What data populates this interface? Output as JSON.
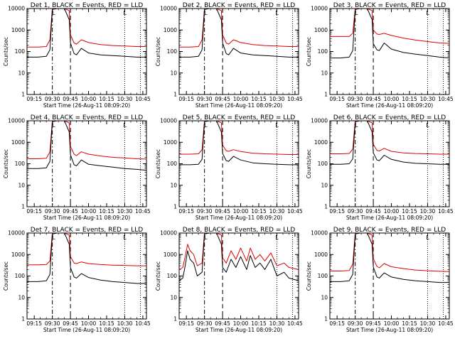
{
  "figure": {
    "xlabel": "Start Time (26-Aug-11 08:09:20)",
    "ylabel": "Counts/sec",
    "colors": {
      "events": "#000000",
      "lld": "#dd0000",
      "axes": "#000000"
    },
    "legend": "BLACK = Events, RED = LLD",
    "flag_label": "L"
  },
  "chart_data": [
    {
      "type": "line",
      "title": "Det 1, BLACK = Events, RED = LLD",
      "yscale": "log",
      "ylim": [
        1,
        10000
      ],
      "xlim": [
        "09:09",
        "10:48"
      ],
      "xticks": [
        "09:15",
        "09:30",
        "09:45",
        "10:00",
        "10:15",
        "10:30",
        "10:45"
      ],
      "yticks": [
        "1",
        "10",
        "100",
        "1000",
        "10000"
      ],
      "dashed_lines": [
        "09:30",
        "09:45"
      ],
      "dotted_lines": [
        "10:30",
        "10:43"
      ],
      "flag_markers": [
        "09:31",
        "10:30"
      ],
      "x": [
        "09:09",
        "09:18",
        "09:25",
        "09:28",
        "09:30",
        "09:34",
        "09:40",
        "09:44",
        "09:45",
        "09:48",
        "09:50",
        "09:54",
        "10:00",
        "10:10",
        "10:20",
        "10:30",
        "10:40",
        "10:48"
      ],
      "series": [
        {
          "name": "BLACK = Events",
          "values": [
            55,
            55,
            60,
            120,
            9000,
            10000,
            10000,
            3000,
            250,
            80,
            70,
            140,
            85,
            70,
            65,
            60,
            55,
            55
          ]
        },
        {
          "name": "RED = LLD",
          "values": [
            160,
            160,
            170,
            350,
            10000,
            10000,
            10000,
            8000,
            600,
            250,
            220,
            350,
            260,
            210,
            190,
            180,
            170,
            170
          ]
        }
      ]
    },
    {
      "type": "line",
      "title": "Det 2, BLACK = Events, RED = LLD",
      "yscale": "log",
      "ylim": [
        1,
        10000
      ],
      "xlim": [
        "09:09",
        "10:48"
      ],
      "xticks": [
        "09:15",
        "09:30",
        "09:45",
        "10:00",
        "10:15",
        "10:30",
        "10:45"
      ],
      "yticks": [
        "1",
        "10",
        "100",
        "1000",
        "10000"
      ],
      "dashed_lines": [
        "09:30",
        "09:45"
      ],
      "dotted_lines": [
        "10:30",
        "10:43"
      ],
      "flag_markers": [
        "09:31",
        "10:30"
      ],
      "x": [
        "09:09",
        "09:18",
        "09:25",
        "09:28",
        "09:30",
        "09:34",
        "09:40",
        "09:44",
        "09:45",
        "09:48",
        "09:50",
        "09:54",
        "10:00",
        "10:10",
        "10:20",
        "10:30",
        "10:40",
        "10:48"
      ],
      "series": [
        {
          "name": "BLACK = Events",
          "values": [
            55,
            55,
            60,
            120,
            9000,
            10000,
            10000,
            3000,
            250,
            80,
            70,
            140,
            85,
            70,
            65,
            60,
            55,
            55
          ]
        },
        {
          "name": "RED = LLD",
          "values": [
            160,
            160,
            170,
            350,
            10000,
            10000,
            10000,
            8000,
            600,
            250,
            220,
            350,
            260,
            210,
            190,
            180,
            170,
            170
          ]
        }
      ]
    },
    {
      "type": "line",
      "title": "Det 3, BLACK = Events, RED = LLD",
      "yscale": "log",
      "ylim": [
        1,
        10000
      ],
      "xlim": [
        "09:09",
        "10:48"
      ],
      "xticks": [
        "09:15",
        "09:30",
        "09:45",
        "10:00",
        "10:15",
        "10:30",
        "10:45"
      ],
      "yticks": [
        "1",
        "10",
        "100",
        "1000",
        "10000"
      ],
      "dashed_lines": [
        "09:30",
        "09:45"
      ],
      "dotted_lines": [
        "10:30",
        "10:43"
      ],
      "flag_markers": [
        "09:31",
        "10:30"
      ],
      "x": [
        "09:09",
        "09:18",
        "09:25",
        "09:28",
        "09:30",
        "09:34",
        "09:40",
        "09:44",
        "09:45",
        "09:48",
        "09:50",
        "09:54",
        "10:00",
        "10:10",
        "10:20",
        "10:30",
        "10:40",
        "10:48"
      ],
      "series": [
        {
          "name": "BLACK = Events",
          "values": [
            50,
            50,
            55,
            110,
            9000,
            10000,
            10000,
            3000,
            230,
            120,
            110,
            250,
            130,
            90,
            75,
            65,
            55,
            50
          ]
        },
        {
          "name": "RED = LLD",
          "values": [
            500,
            500,
            500,
            700,
            10000,
            10000,
            10000,
            8000,
            1000,
            650,
            620,
            700,
            560,
            420,
            340,
            290,
            250,
            240
          ]
        }
      ]
    },
    {
      "type": "line",
      "title": "Det 4, BLACK = Events, RED = LLD",
      "yscale": "log",
      "ylim": [
        1,
        10000
      ],
      "xlim": [
        "09:09",
        "10:48"
      ],
      "xticks": [
        "09:15",
        "09:30",
        "09:45",
        "10:00",
        "10:15",
        "10:30",
        "10:45"
      ],
      "yticks": [
        "1",
        "10",
        "100",
        "1000",
        "10000"
      ],
      "dashed_lines": [
        "09:30",
        "09:45"
      ],
      "dotted_lines": [
        "10:30",
        "10:43"
      ],
      "flag_markers": [
        "09:31",
        "10:30"
      ],
      "x": [
        "09:09",
        "09:18",
        "09:25",
        "09:28",
        "09:30",
        "09:34",
        "09:40",
        "09:44",
        "09:45",
        "09:48",
        "09:50",
        "09:54",
        "10:00",
        "10:10",
        "10:20",
        "10:30",
        "10:40",
        "10:48"
      ],
      "series": [
        {
          "name": "BLACK = Events",
          "values": [
            60,
            60,
            65,
            130,
            9000,
            10000,
            10000,
            3000,
            260,
            90,
            80,
            150,
            95,
            80,
            70,
            60,
            55,
            50
          ]
        },
        {
          "name": "RED = LLD",
          "values": [
            170,
            170,
            180,
            360,
            10000,
            10000,
            10000,
            8000,
            650,
            280,
            240,
            360,
            280,
            230,
            200,
            185,
            170,
            165
          ]
        }
      ]
    },
    {
      "type": "line",
      "title": "Det 5, BLACK = Events, RED = LLD",
      "yscale": "log",
      "ylim": [
        1,
        10000
      ],
      "xlim": [
        "09:09",
        "10:48"
      ],
      "xticks": [
        "09:15",
        "09:30",
        "09:45",
        "10:00",
        "10:15",
        "10:30",
        "10:45"
      ],
      "yticks": [
        "1",
        "10",
        "100",
        "1000",
        "10000"
      ],
      "dashed_lines": [
        "09:30",
        "09:45"
      ],
      "dotted_lines": [
        "10:30",
        "10:43"
      ],
      "flag_markers": [
        "09:31",
        "10:30"
      ],
      "x": [
        "09:09",
        "09:18",
        "09:25",
        "09:28",
        "09:30",
        "09:34",
        "09:40",
        "09:44",
        "09:45",
        "09:48",
        "09:50",
        "09:54",
        "10:00",
        "10:10",
        "10:20",
        "10:30",
        "10:40",
        "10:48"
      ],
      "series": [
        {
          "name": "BLACK = Events",
          "values": [
            90,
            90,
            95,
            160,
            9000,
            10000,
            10000,
            3000,
            300,
            140,
            130,
            220,
            150,
            110,
            100,
            95,
            90,
            90
          ]
        },
        {
          "name": "RED = LLD",
          "values": [
            280,
            280,
            290,
            450,
            10000,
            10000,
            10000,
            8000,
            750,
            400,
            380,
            450,
            370,
            310,
            290,
            280,
            270,
            270
          ]
        }
      ]
    },
    {
      "type": "line",
      "title": "Det 6, BLACK = Events, RED = LLD",
      "yscale": "log",
      "ylim": [
        1,
        10000
      ],
      "xlim": [
        "09:09",
        "10:48"
      ],
      "xticks": [
        "09:15",
        "09:30",
        "09:45",
        "10:00",
        "10:15",
        "10:30",
        "10:45"
      ],
      "yticks": [
        "1",
        "10",
        "100",
        "1000",
        "10000"
      ],
      "dashed_lines": [
        "09:30",
        "09:45"
      ],
      "dotted_lines": [
        "10:30",
        "10:43"
      ],
      "flag_markers": [
        "09:31",
        "10:30"
      ],
      "x": [
        "09:09",
        "09:18",
        "09:25",
        "09:28",
        "09:30",
        "09:34",
        "09:40",
        "09:44",
        "09:45",
        "09:48",
        "09:50",
        "09:54",
        "10:00",
        "10:10",
        "10:20",
        "10:30",
        "10:40",
        "10:48"
      ],
      "series": [
        {
          "name": "BLACK = Events",
          "values": [
            95,
            95,
            100,
            170,
            9000,
            10000,
            10000,
            3000,
            320,
            150,
            140,
            250,
            160,
            120,
            105,
            100,
            95,
            95
          ]
        },
        {
          "name": "RED = LLD",
          "values": [
            290,
            290,
            300,
            480,
            10000,
            10000,
            10000,
            8000,
            800,
            420,
            390,
            520,
            380,
            320,
            300,
            290,
            280,
            280
          ]
        }
      ]
    },
    {
      "type": "line",
      "title": "Det 7, BLACK = Events, RED = LLD",
      "yscale": "log",
      "ylim": [
        1,
        10000
      ],
      "xlim": [
        "09:09",
        "10:48"
      ],
      "xticks": [
        "09:15",
        "09:30",
        "09:45",
        "10:00",
        "10:15",
        "10:30",
        "10:45"
      ],
      "yticks": [
        "1",
        "10",
        "100",
        "1000",
        "10000"
      ],
      "dashed_lines": [
        "09:30",
        "09:45"
      ],
      "dotted_lines": [
        "10:30",
        "10:43"
      ],
      "flag_markers": [
        "09:31",
        "10:30"
      ],
      "x": [
        "09:09",
        "09:18",
        "09:25",
        "09:28",
        "09:30",
        "09:34",
        "09:40",
        "09:44",
        "09:45",
        "09:48",
        "09:50",
        "09:54",
        "10:00",
        "10:10",
        "10:20",
        "10:30",
        "10:40",
        "10:48"
      ],
      "series": [
        {
          "name": "BLACK = Events",
          "values": [
            55,
            55,
            60,
            120,
            9000,
            10000,
            10000,
            3000,
            250,
            90,
            80,
            130,
            85,
            65,
            55,
            50,
            45,
            45
          ]
        },
        {
          "name": "RED = LLD",
          "values": [
            330,
            330,
            340,
            500,
            10000,
            10000,
            10000,
            8000,
            800,
            400,
            380,
            450,
            380,
            340,
            320,
            310,
            300,
            300
          ]
        }
      ]
    },
    {
      "type": "line",
      "title": "Det 8, BLACK = Events, RED = LLD",
      "yscale": "log",
      "ylim": [
        1,
        10000
      ],
      "xlim": [
        "09:09",
        "10:48"
      ],
      "xticks": [
        "09:15",
        "09:30",
        "09:45",
        "10:00",
        "10:15",
        "10:30",
        "10:45"
      ],
      "yticks": [
        "1",
        "10",
        "100",
        "1000",
        "10000"
      ],
      "dashed_lines": [
        "09:30",
        "09:45"
      ],
      "dotted_lines": [
        "10:30",
        "10:43"
      ],
      "flag_markers": [
        "09:31",
        "10:30"
      ],
      "x": [
        "09:09",
        "09:12",
        "09:14",
        "09:16",
        "09:18",
        "09:21",
        "09:24",
        "09:28",
        "09:30",
        "09:34",
        "09:40",
        "09:44",
        "09:45",
        "09:48",
        "09:52",
        "09:56",
        "10:00",
        "10:05",
        "10:08",
        "10:12",
        "10:16",
        "10:20",
        "10:25",
        "10:30",
        "10:36",
        "10:40",
        "10:48"
      ],
      "series": [
        {
          "name": "BLACK = Events",
          "values": [
            60,
            80,
            300,
            1500,
            600,
            400,
            100,
            150,
            9000,
            10000,
            10000,
            3000,
            250,
            150,
            600,
            250,
            800,
            200,
            900,
            250,
            400,
            200,
            600,
            100,
            150,
            80,
            60
          ]
        },
        {
          "name": "RED = LLD",
          "values": [
            200,
            250,
            800,
            3000,
            1500,
            1000,
            300,
            400,
            10000,
            10000,
            10000,
            8000,
            700,
            400,
            1500,
            600,
            2000,
            500,
            2000,
            600,
            1000,
            500,
            1200,
            300,
            400,
            250,
            200
          ]
        }
      ]
    },
    {
      "type": "line",
      "title": "Det 9, BLACK = Events, RED = LLD",
      "yscale": "log",
      "ylim": [
        1,
        10000
      ],
      "xlim": [
        "09:09",
        "10:48"
      ],
      "xticks": [
        "09:15",
        "09:30",
        "09:45",
        "10:00",
        "10:15",
        "10:30",
        "10:45"
      ],
      "yticks": [
        "1",
        "10",
        "100",
        "1000",
        "10000"
      ],
      "dashed_lines": [
        "09:30",
        "09:45"
      ],
      "dotted_lines": [
        "10:30",
        "10:43"
      ],
      "flag_markers": [
        "09:31",
        "10:30"
      ],
      "x": [
        "09:09",
        "09:18",
        "09:25",
        "09:28",
        "09:30",
        "09:34",
        "09:40",
        "09:44",
        "09:45",
        "09:48",
        "09:50",
        "09:54",
        "10:00",
        "10:10",
        "10:20",
        "10:30",
        "10:40",
        "10:48"
      ],
      "series": [
        {
          "name": "BLACK = Events",
          "values": [
            55,
            55,
            60,
            120,
            9000,
            10000,
            10000,
            3000,
            260,
            90,
            80,
            140,
            90,
            70,
            60,
            55,
            50,
            50
          ]
        },
        {
          "name": "RED = LLD",
          "values": [
            170,
            170,
            180,
            360,
            10000,
            10000,
            10000,
            8000,
            650,
            280,
            240,
            380,
            270,
            220,
            190,
            175,
            165,
            160
          ]
        }
      ]
    }
  ]
}
